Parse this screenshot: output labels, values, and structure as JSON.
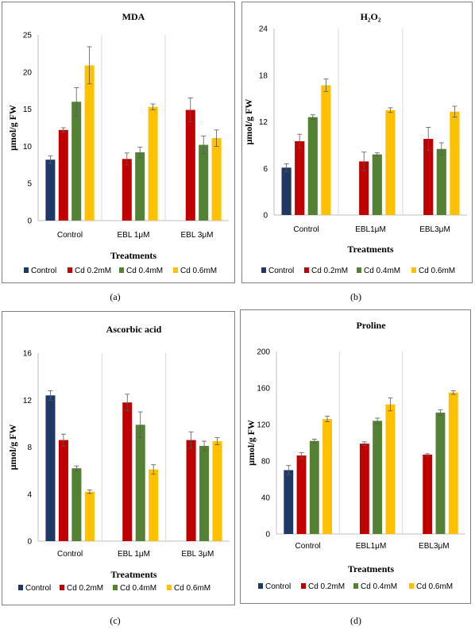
{
  "panels": [
    {
      "caption": "(a)"
    },
    {
      "caption": "(b)"
    },
    {
      "caption": "(c)"
    },
    {
      "caption": "(d)"
    }
  ],
  "colors": {
    "Control": "#1f3864",
    "Cd 0.2mM": "#c00000",
    "Cd 0.4mM": "#548235",
    "Cd 0.6mM": "#ffc000",
    "grid": "#d9d9d9",
    "error_bar": "#595959"
  },
  "chart_data": [
    {
      "type": "bar",
      "title": "MDA",
      "xlabel": "Treatments",
      "ylabel": "μmol/g FW",
      "categories": [
        "Control",
        "EBL 1μM",
        "EBL 3μM"
      ],
      "ylim": [
        0,
        25
      ],
      "yticks": [
        0,
        5,
        10,
        15,
        20,
        25
      ],
      "series": [
        {
          "name": "Control",
          "values": [
            8.2,
            null,
            null
          ],
          "errors": [
            0.5,
            null,
            null
          ]
        },
        {
          "name": "Cd 0.2mM",
          "values": [
            12.2,
            8.3,
            14.9
          ],
          "errors": [
            0.3,
            0.8,
            1.6
          ]
        },
        {
          "name": "Cd 0.4mM",
          "values": [
            16.0,
            9.2,
            10.2
          ],
          "errors": [
            1.9,
            0.7,
            1.2
          ]
        },
        {
          "name": "Cd 0.6mM",
          "values": [
            20.9,
            15.3,
            11.1
          ],
          "errors": [
            2.5,
            0.4,
            1.1
          ]
        }
      ],
      "legend": "bottom"
    },
    {
      "type": "bar",
      "title": "H₂O₂",
      "xlabel": "Treatments",
      "ylabel": "μmol/g FW",
      "categories": [
        "Control",
        "EBL1μM",
        "EBL3μM"
      ],
      "ylim": [
        0,
        24
      ],
      "yticks": [
        0,
        6,
        12,
        18,
        24
      ],
      "series": [
        {
          "name": "Control",
          "values": [
            6.1,
            null,
            null
          ],
          "errors": [
            0.5,
            null,
            null
          ]
        },
        {
          "name": "Cd 0.2mM",
          "values": [
            9.5,
            6.9,
            9.8
          ],
          "errors": [
            0.9,
            1.2,
            1.5
          ]
        },
        {
          "name": "Cd 0.4mM",
          "values": [
            12.6,
            7.8,
            8.5
          ],
          "errors": [
            0.3,
            0.2,
            0.8
          ]
        },
        {
          "name": "Cd 0.6mM",
          "values": [
            16.7,
            13.5,
            13.3
          ],
          "errors": [
            0.8,
            0.3,
            0.7
          ]
        }
      ],
      "legend": "bottom"
    },
    {
      "type": "bar",
      "title": "Ascorbic acid",
      "xlabel": "Treatments",
      "ylabel": "μmol/g FW",
      "categories": [
        "Control",
        "EBL 1μM",
        "EBL 3μM"
      ],
      "ylim": [
        0,
        16
      ],
      "yticks": [
        0,
        4,
        8,
        12,
        16
      ],
      "series": [
        {
          "name": "Control",
          "values": [
            12.4,
            null,
            null
          ],
          "errors": [
            0.4,
            null,
            null
          ]
        },
        {
          "name": "Cd 0.2mM",
          "values": [
            8.6,
            11.8,
            8.6
          ],
          "errors": [
            0.5,
            0.7,
            0.7
          ]
        },
        {
          "name": "Cd 0.4mM",
          "values": [
            6.2,
            9.9,
            8.1
          ],
          "errors": [
            0.2,
            1.1,
            0.4
          ]
        },
        {
          "name": "Cd 0.6mM",
          "values": [
            4.2,
            6.1,
            8.5
          ],
          "errors": [
            0.15,
            0.4,
            0.3
          ]
        }
      ],
      "legend": "bottom"
    },
    {
      "type": "bar",
      "title": "Proline",
      "xlabel": "Treatments",
      "ylabel": "μmol/g FW",
      "categories": [
        "Control",
        "EBL1μM",
        "EBL3μM"
      ],
      "ylim": [
        0,
        200
      ],
      "yticks": [
        0,
        40,
        80,
        120,
        160,
        200
      ],
      "series": [
        {
          "name": "Control",
          "values": [
            70,
            null,
            null
          ],
          "errors": [
            5,
            null,
            null
          ]
        },
        {
          "name": "Cd 0.2mM",
          "values": [
            86,
            99,
            87
          ],
          "errors": [
            3,
            2,
            1
          ]
        },
        {
          "name": "Cd 0.4mM",
          "values": [
            102,
            124,
            133
          ],
          "errors": [
            2,
            3,
            3
          ]
        },
        {
          "name": "Cd 0.6mM",
          "values": [
            126,
            142,
            155
          ],
          "errors": [
            3,
            7,
            2
          ]
        }
      ],
      "legend": "bottom"
    }
  ]
}
